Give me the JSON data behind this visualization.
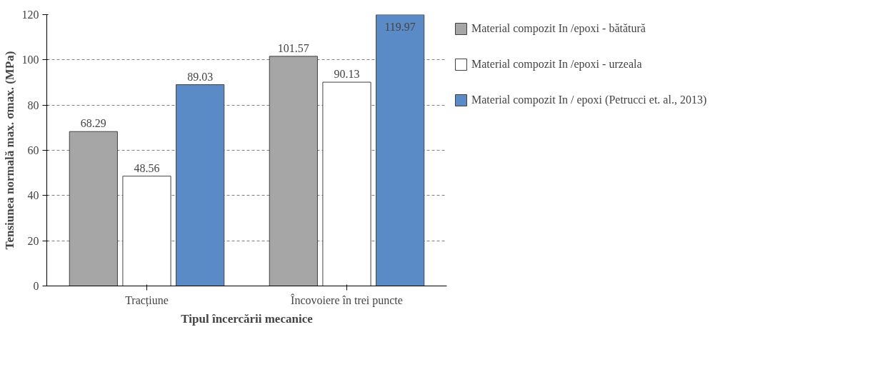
{
  "chart_data": {
    "type": "bar",
    "xlabel": "Tipul încercării mecanice",
    "ylabel": "Tensiunea normală max. σmax. (MPa)",
    "categories": [
      "Tracțiune",
      "Încovoiere în trei puncte"
    ],
    "series": [
      {
        "name": "Material compozit In /epoxi - bătătură",
        "color": "#a6a6a6",
        "values": [
          68.29,
          101.57
        ]
      },
      {
        "name": "Material compozit In /epoxi - urzeala",
        "color": "#ffffff",
        "values": [
          48.56,
          90.13
        ]
      },
      {
        "name": "Material compozit In / epoxi (Petrucci et. al., 2013)",
        "color": "#5b8bc6",
        "values": [
          89.03,
          119.97
        ]
      }
    ],
    "ylim": [
      0,
      120
    ],
    "yticks": [
      0,
      20,
      40,
      60,
      80,
      100,
      120
    ],
    "grid": "y",
    "legend": "right",
    "data_labels": true
  }
}
